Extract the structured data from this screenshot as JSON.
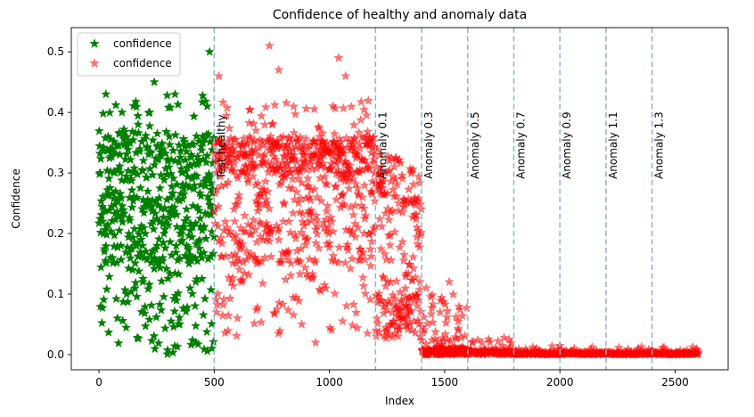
{
  "chart_data": {
    "type": "scatter",
    "title": "Confidence of healthy and anomaly data",
    "xlabel": "Index",
    "ylabel": "Confidence",
    "xlim": [
      -120,
      2730
    ],
    "ylim": [
      -0.025,
      0.54
    ],
    "x_ticks": [
      0,
      500,
      1000,
      1500,
      2000,
      2500
    ],
    "y_ticks": [
      0.0,
      0.1,
      0.2,
      0.3,
      0.4,
      0.5
    ],
    "grid": false,
    "legend_position": "upper-left",
    "series": [
      {
        "name": "confidence",
        "color": "#008000",
        "marker": "star",
        "alpha": 1.0,
        "index_range": [
          0,
          500
        ],
        "summary": "dense band 0.15-0.37, scattered down to 0.0 and up to 0.5",
        "points": [
          [
            5,
            0.3
          ],
          [
            30,
            0.43
          ],
          [
            50,
            0.16
          ],
          [
            80,
            0.06
          ],
          [
            100,
            0.4
          ],
          [
            120,
            0.1
          ],
          [
            150,
            0.3
          ],
          [
            170,
            0.38
          ],
          [
            190,
            0.12
          ],
          [
            220,
            0.4
          ],
          [
            240,
            0.45
          ],
          [
            260,
            0.15
          ],
          [
            300,
            0.32
          ],
          [
            330,
            0.43
          ],
          [
            350,
            0.05
          ],
          [
            380,
            0.24
          ],
          [
            400,
            0.33
          ],
          [
            420,
            0.12
          ],
          [
            450,
            0.36
          ],
          [
            470,
            0.41
          ],
          [
            480,
            0.5
          ],
          [
            490,
            0.01
          ]
        ]
      },
      {
        "name": "confidence",
        "color": "#ff0000",
        "marker": "star",
        "alpha": 0.55,
        "index_range": [
          500,
          2600
        ],
        "summary": "test healthy band 0.15-0.35 to index 1200, then decays to ~0 by 1600",
        "points": [
          [
            520,
            0.46
          ],
          [
            560,
            0.34
          ],
          [
            620,
            0.12
          ],
          [
            680,
            0.28
          ],
          [
            740,
            0.51
          ],
          [
            780,
            0.47
          ],
          [
            820,
            0.33
          ],
          [
            880,
            0.05
          ],
          [
            940,
            0.02
          ],
          [
            990,
            0.35
          ],
          [
            1040,
            0.49
          ],
          [
            1070,
            0.46
          ],
          [
            1100,
            0.3
          ],
          [
            1150,
            0.2
          ],
          [
            1220,
            0.09
          ],
          [
            1260,
            0.32
          ],
          [
            1300,
            0.25
          ],
          [
            1350,
            0.05
          ],
          [
            1380,
            0.21
          ],
          [
            1420,
            0.11
          ],
          [
            1480,
            0.07
          ],
          [
            1520,
            0.12
          ],
          [
            1560,
            0.04
          ],
          [
            1620,
            0.02
          ],
          [
            1720,
            0.01
          ],
          [
            1780,
            0.025
          ],
          [
            1900,
            0.01
          ],
          [
            2000,
            0.015
          ],
          [
            2200,
            0.005
          ],
          [
            2400,
            0.008
          ],
          [
            2600,
            0.005
          ]
        ]
      }
    ],
    "vlines": [
      {
        "x": 500,
        "label": "Test healthy"
      },
      {
        "x": 1200,
        "label": "Anomaly 0.1"
      },
      {
        "x": 1400,
        "label": "Anomaly 0.3"
      },
      {
        "x": 1600,
        "label": "Anomaly 0.5"
      },
      {
        "x": 1800,
        "label": "Anomaly 0.7"
      },
      {
        "x": 2000,
        "label": "Anomaly 0.9"
      },
      {
        "x": 2200,
        "label": "Anomaly 1.1"
      },
      {
        "x": 2400,
        "label": "Anomaly 1.3"
      }
    ],
    "vline_color": "#8ab4d8"
  }
}
